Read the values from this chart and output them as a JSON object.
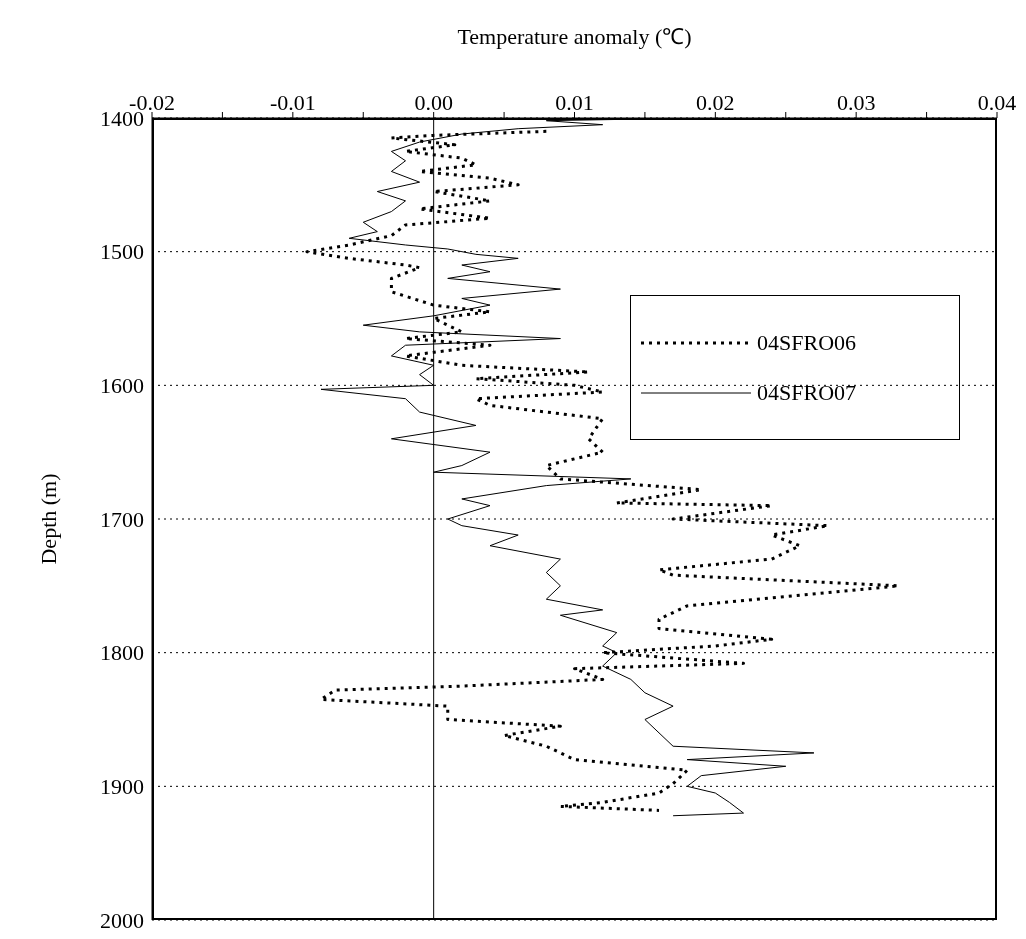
{
  "chart_data": {
    "type": "line",
    "xlabel": "Temperature anomaly (℃)",
    "ylabel": "Depth (m)",
    "xlim": [
      -0.02,
      0.04
    ],
    "xticks": [
      {
        "value": -0.02,
        "label": "-0.02"
      },
      {
        "value": -0.015,
        "label": null
      },
      {
        "value": -0.01,
        "label": "-0.01"
      },
      {
        "value": -0.005,
        "label": null
      },
      {
        "value": 0,
        "label": "0.00"
      },
      {
        "value": 0.005,
        "label": null
      },
      {
        "value": 0.01,
        "label": "0.01"
      },
      {
        "value": 0.015,
        "label": null
      },
      {
        "value": 0.02,
        "label": "0.02"
      },
      {
        "value": 0.025,
        "label": null
      },
      {
        "value": 0.03,
        "label": "0.03"
      },
      {
        "value": 0.035,
        "label": null
      },
      {
        "value": 0.04,
        "label": "0.04"
      }
    ],
    "ylim": [
      2000,
      1400
    ],
    "yticks": [
      1400,
      1500,
      1600,
      1700,
      1800,
      1900,
      2000
    ],
    "grid": "y",
    "legend": "right",
    "ref_lines": [
      {
        "axis": "x",
        "value": 0,
        "color": "#000000",
        "line_style": "solid"
      }
    ],
    "series": [
      {
        "name": "04SFRO06",
        "color": "#000000",
        "line_style": "dotted",
        "x": [
          0.008,
          0.0,
          -0.003,
          0.0015,
          -0.002,
          0.002,
          0.003,
          -0.001,
          0.004,
          0.006,
          0.0,
          0.004,
          -0.001,
          0.004,
          -0.002,
          -0.003,
          -0.006,
          -0.009,
          -0.006,
          -0.002,
          -0.001,
          -0.003,
          -0.003,
          0.0,
          0.004,
          0.0,
          0.002,
          -0.002,
          0.004,
          -0.002,
          0.002,
          0.011,
          0.003,
          0.01,
          0.012,
          0.003,
          0.004,
          0.012,
          0.011,
          0.012,
          0.008,
          0.009,
          0.019,
          0.013,
          0.024,
          0.017,
          0.028,
          0.024,
          0.026,
          0.024,
          0.016,
          0.017,
          0.033,
          0.018,
          0.016,
          0.016,
          0.024,
          0.02,
          0.012,
          0.022,
          0.01,
          0.012,
          0.002,
          -0.007,
          -0.008,
          0.001,
          0.001,
          0.009,
          0.005,
          0.008,
          0.01,
          0.018,
          0.017,
          0.016,
          0.012,
          0.009,
          0.016
        ],
        "values": [
          1410,
          1413,
          1415,
          1420,
          1425,
          1430,
          1435,
          1440,
          1445,
          1450,
          1455,
          1462,
          1468,
          1475,
          1480,
          1488,
          1495,
          1500,
          1505,
          1510,
          1512,
          1520,
          1530,
          1540,
          1545,
          1550,
          1560,
          1565,
          1570,
          1578,
          1585,
          1590,
          1595,
          1600,
          1605,
          1610,
          1615,
          1625,
          1640,
          1650,
          1660,
          1670,
          1678,
          1688,
          1690,
          1700,
          1705,
          1712,
          1720,
          1730,
          1738,
          1742,
          1750,
          1765,
          1775,
          1782,
          1790,
          1795,
          1800,
          1808,
          1812,
          1820,
          1825,
          1828,
          1835,
          1840,
          1850,
          1855,
          1862,
          1870,
          1880,
          1888,
          1898,
          1905,
          1912,
          1915,
          1918
        ]
      },
      {
        "name": "04SFRO07",
        "color": "#000000",
        "line_style": "solid",
        "x": [
          0.019,
          0.008,
          0.012,
          0.006,
          0.002,
          -0.001,
          -0.003,
          -0.002,
          -0.003,
          -0.001,
          -0.004,
          -0.002,
          -0.003,
          -0.005,
          -0.004,
          -0.006,
          -0.002,
          0.001,
          0.003,
          0.006,
          0.002,
          0.004,
          0.001,
          0.009,
          0.002,
          0.004,
          0.0,
          -0.005,
          -0.001,
          0.009,
          -0.002,
          -0.003,
          0.0,
          -0.001,
          0.0,
          -0.008,
          -0.002,
          -0.001,
          0.003,
          -0.003,
          0.004,
          0.002,
          0.0,
          0.014,
          0.008,
          0.002,
          0.004,
          0.001,
          0.002,
          0.006,
          0.004,
          0.009,
          0.008,
          0.009,
          0.008,
          0.012,
          0.009,
          0.013,
          0.012,
          0.013,
          0.012,
          0.014,
          0.015,
          0.017,
          0.015,
          0.016,
          0.017,
          0.027,
          0.018,
          0.025,
          0.019,
          0.018,
          0.02,
          0.021,
          0.022,
          0.017
        ],
        "values": [
          1400,
          1402,
          1405,
          1408,
          1412,
          1418,
          1425,
          1432,
          1440,
          1448,
          1455,
          1462,
          1470,
          1478,
          1485,
          1490,
          1495,
          1498,
          1502,
          1505,
          1510,
          1515,
          1520,
          1528,
          1535,
          1540,
          1548,
          1555,
          1560,
          1565,
          1570,
          1578,
          1585,
          1592,
          1600,
          1603,
          1610,
          1620,
          1630,
          1640,
          1650,
          1660,
          1665,
          1670,
          1675,
          1685,
          1690,
          1700,
          1705,
          1712,
          1720,
          1730,
          1740,
          1750,
          1760,
          1768,
          1772,
          1785,
          1795,
          1800,
          1810,
          1820,
          1830,
          1840,
          1850,
          1860,
          1870,
          1875,
          1880,
          1885,
          1892,
          1900,
          1905,
          1912,
          1920,
          1922
        ]
      }
    ]
  }
}
